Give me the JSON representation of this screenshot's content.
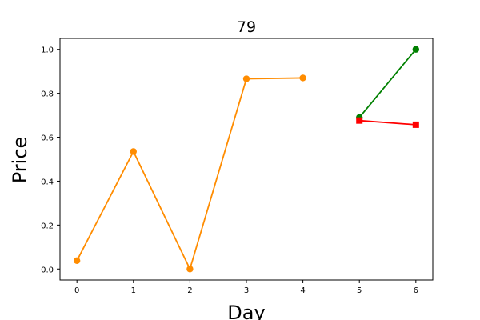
{
  "chart_data": {
    "type": "line",
    "title": "79",
    "xlabel": "Day",
    "ylabel": "Price",
    "xlim": [
      -0.3,
      6.3
    ],
    "ylim": [
      -0.05,
      1.05
    ],
    "xticks": [
      0,
      1,
      2,
      3,
      4,
      5,
      6
    ],
    "yticks": [
      0.0,
      0.2,
      0.4,
      0.6,
      0.8,
      1.0
    ],
    "ytick_labels": [
      "0.0",
      "0.2",
      "0.4",
      "0.6",
      "0.8",
      "1.0"
    ],
    "grid": false,
    "series": [
      {
        "color": "#ff8c00",
        "marker": "circle",
        "points": [
          {
            "x": 0,
            "y": 0.038
          },
          {
            "x": 1,
            "y": 0.535
          },
          {
            "x": 2,
            "y": 0.0
          },
          {
            "x": 3,
            "y": 0.866
          },
          {
            "x": 4,
            "y": 0.87
          }
        ]
      },
      {
        "color": "#008000",
        "marker": "circle",
        "points": [
          {
            "x": 5,
            "y": 0.69
          },
          {
            "x": 6,
            "y": 1.0
          }
        ]
      },
      {
        "color": "#ff0000",
        "marker": "square",
        "points": [
          {
            "x": 5,
            "y": 0.676
          },
          {
            "x": 6,
            "y": 0.657
          }
        ]
      }
    ]
  }
}
